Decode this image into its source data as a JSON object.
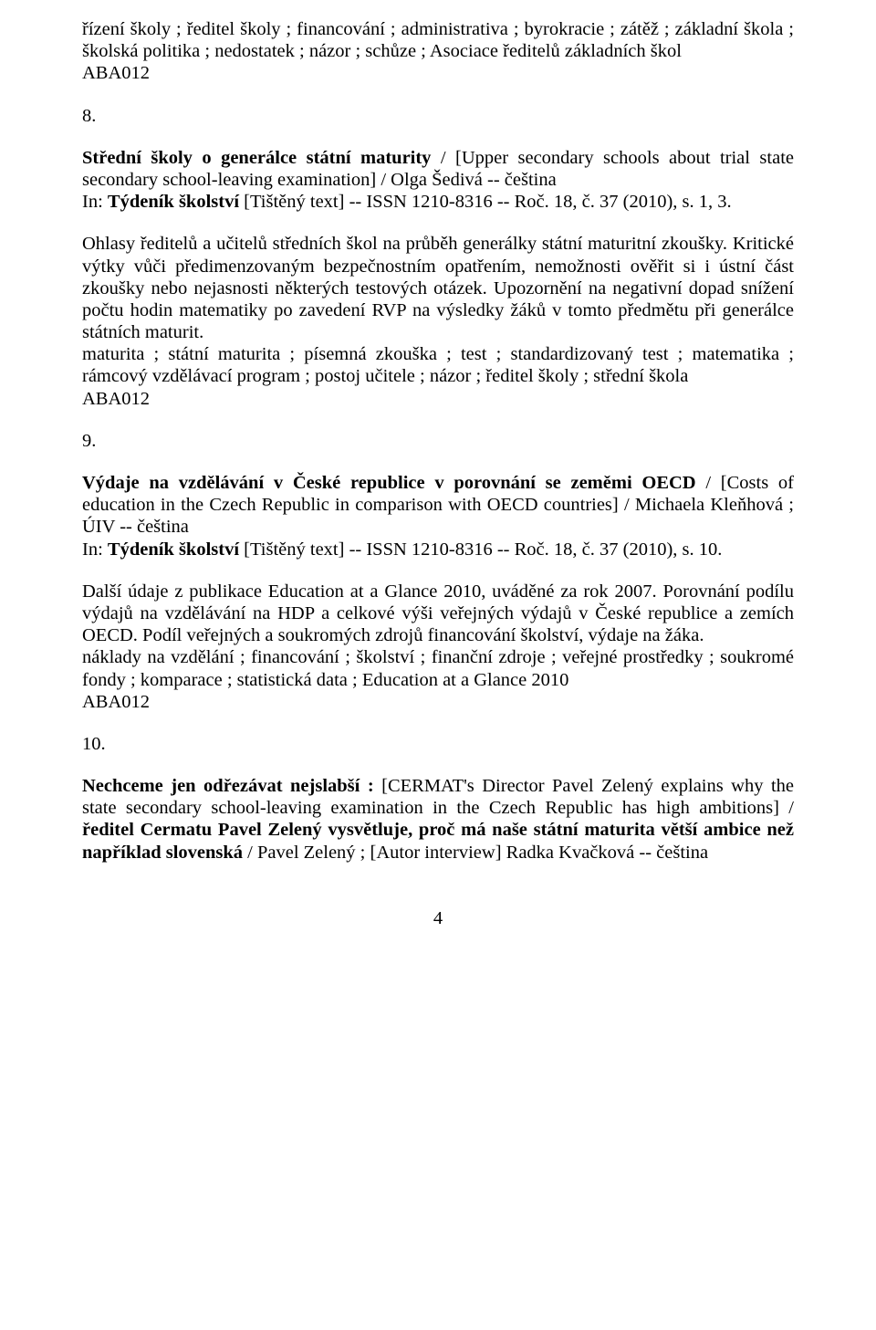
{
  "para_top": "řízení školy ; ředitel školy ; financování ; administrativa ; byrokracie ; zátěž ; základní škola ; školská politika ; nedostatek ; názor ; schůze ; Asociace ředitelů základních škol",
  "code1": "ABA012",
  "n8": "8.",
  "e8": {
    "title_bold": "Střední školy o generálce státní maturity",
    "title_rest": " / [Upper secondary schools about trial state secondary school-leaving examination] / Olga Šedivá -- čeština",
    "in_prefix": "In: ",
    "in_bold": "Týdeník školství",
    "in_rest": " [Tištěný text] -- ISSN 1210-8316 -- Roč. 18, č. 37 (2010), s. 1, 3."
  },
  "e8_body": "Ohlasy ředitelů a učitelů středních škol na průběh generálky státní maturitní zkoušky. Kritické výtky vůči předimenzovaným bezpečnostním opatřením, nemožnosti ověřit si i ústní část zkoušky nebo nejasnosti některých testových otázek. Upozornění na negativní dopad snížení počtu hodin matematiky po zavedení RVP na výsledky žáků v tomto předmětu při generálce státních maturit.",
  "e8_kw": "maturita ; státní maturita ; písemná zkouška ; test ; standardizovaný test ; matematika ; rámcový vzdělávací program ; postoj učitele ; názor ; ředitel školy ; střední škola",
  "code2": "ABA012",
  "n9": "9.",
  "e9": {
    "title_bold": "Výdaje na vzdělávání v České republice v porovnání se zeměmi OECD",
    "title_rest": " / [Costs of education in the Czech Republic in comparison with OECD countries] / Michaela Kleňhová ; ÚIV -- čeština",
    "in_prefix": "In: ",
    "in_bold": "Týdeník školství",
    "in_rest": " [Tištěný text] -- ISSN 1210-8316 -- Roč. 18, č. 37 (2010), s. 10."
  },
  "e9_body": "Další údaje z publikace Education at a Glance 2010, uváděné za rok 2007. Porovnání podílu výdajů na vzdělávání na HDP a celkové výši veřejných výdajů v České republice a zemích OECD. Podíl veřejných a soukromých zdrojů financování školství, výdaje na žáka.",
  "e9_kw": "náklady na vzdělání ; financování ; školství ; finanční zdroje ; veřejné prostředky ; soukromé fondy ; komparace ; statistická data ; Education at a Glance 2010",
  "code3": "ABA012",
  "n10": "10.",
  "e10": {
    "title_bold1": "Nechceme jen odřezávat nejslabší :",
    "mid": " [CERMAT's Director Pavel Zelený explains why the state secondary school-leaving examination in the Czech Republic has high ambitions] / ",
    "title_bold2": "ředitel Cermatu Pavel Zelený vysvětluje, proč má naše státní maturita větší ambice než například slovenská",
    "rest": " / Pavel Zelený ; [Autor interview] Radka Kvačková -- čeština"
  },
  "page_number": "4"
}
